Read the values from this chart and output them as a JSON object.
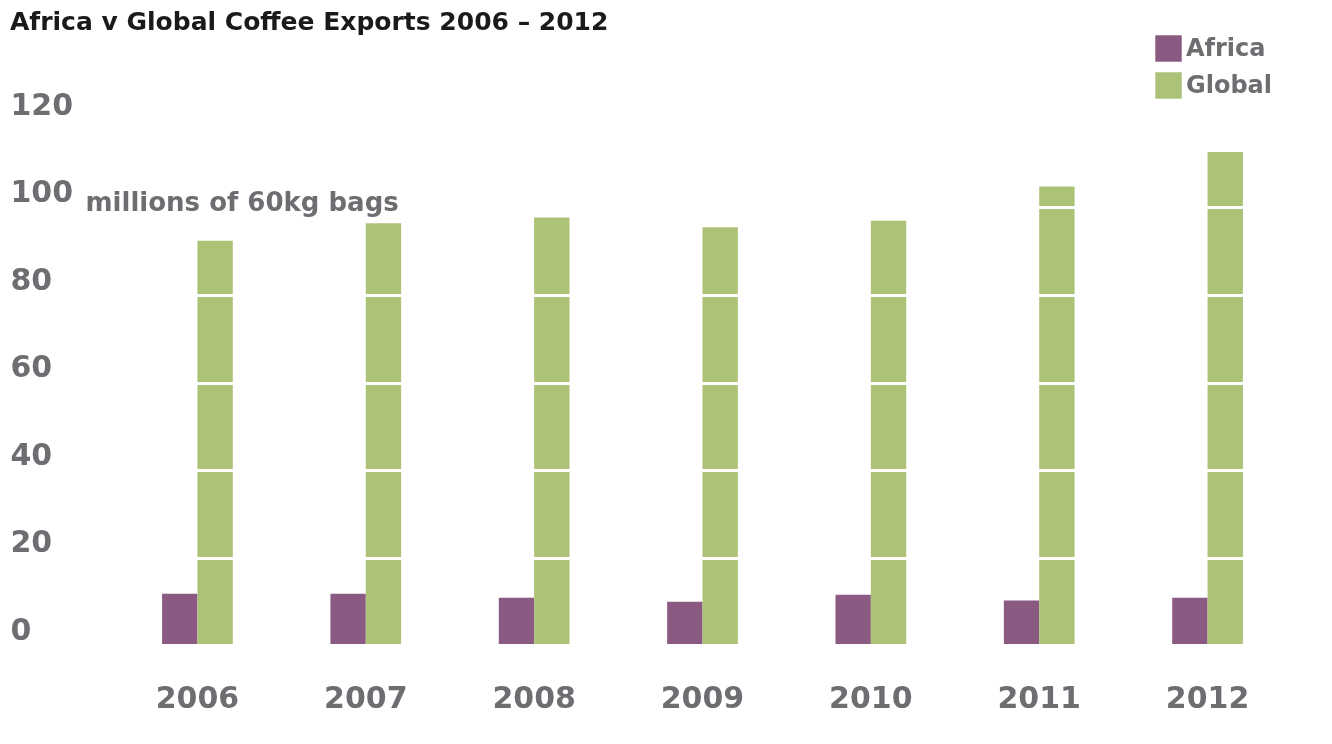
{
  "chart_data": {
    "type": "bar",
    "title": "Africa v Global Coffee Exports 2006 – 2012",
    "ylabel": "millions of 60kg bags",
    "categories": [
      "2006",
      "2007",
      "2008",
      "2009",
      "2010",
      "2011",
      "2012"
    ],
    "series": [
      {
        "name": "Africa",
        "color": "#8b5a82",
        "values": [
          11.7,
          11.7,
          10.8,
          9.9,
          11.5,
          10.2,
          10.8
        ]
      },
      {
        "name": "Global",
        "color": "#acc276",
        "values": [
          92.4,
          96.4,
          97.7,
          95.5,
          97.0,
          104.8,
          112.7
        ]
      }
    ],
    "ylim": [
      0,
      120
    ],
    "yticks": [
      0,
      20,
      40,
      60,
      80,
      100,
      120
    ],
    "grid": "y",
    "legend": "top right"
  }
}
